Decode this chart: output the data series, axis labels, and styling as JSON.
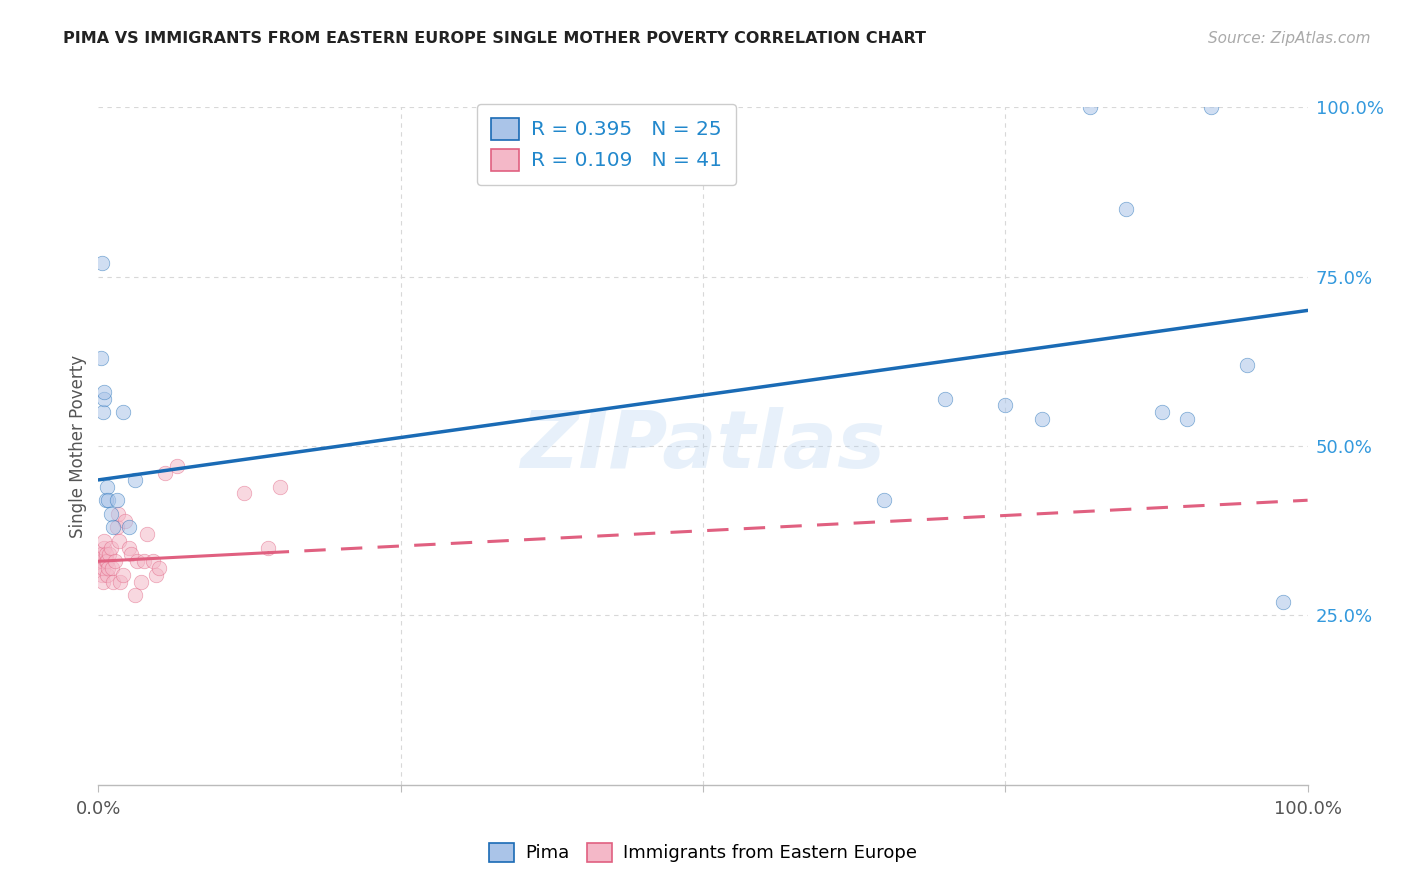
{
  "title": "PIMA VS IMMIGRANTS FROM EASTERN EUROPE SINGLE MOTHER POVERTY CORRELATION CHART",
  "source": "Source: ZipAtlas.com",
  "ylabel": "Single Mother Poverty",
  "watermark": "ZIPatlas",
  "pima_R": 0.395,
  "pima_N": 25,
  "east_europe_R": 0.109,
  "east_europe_N": 41,
  "pima_color": "#aac4e8",
  "pima_line_color": "#1a6bb5",
  "east_europe_color": "#f4b8c8",
  "east_europe_line_color": "#e06080",
  "pima_x": [
    0.002,
    0.003,
    0.004,
    0.005,
    0.005,
    0.006,
    0.007,
    0.008,
    0.01,
    0.012,
    0.015,
    0.02,
    0.025,
    0.03,
    0.65,
    0.7,
    0.75,
    0.78,
    0.82,
    0.85,
    0.88,
    0.9,
    0.92,
    0.95,
    0.98
  ],
  "pima_y": [
    0.63,
    0.77,
    0.55,
    0.57,
    0.58,
    0.42,
    0.44,
    0.42,
    0.4,
    0.38,
    0.42,
    0.55,
    0.38,
    0.45,
    0.42,
    0.57,
    0.56,
    0.54,
    1.0,
    0.85,
    0.55,
    0.54,
    1.0,
    0.62,
    0.27
  ],
  "east_europe_x": [
    0.001,
    0.002,
    0.002,
    0.003,
    0.003,
    0.003,
    0.004,
    0.004,
    0.005,
    0.005,
    0.006,
    0.006,
    0.007,
    0.007,
    0.008,
    0.009,
    0.01,
    0.011,
    0.012,
    0.014,
    0.015,
    0.016,
    0.017,
    0.018,
    0.02,
    0.022,
    0.025,
    0.027,
    0.03,
    0.032,
    0.035,
    0.038,
    0.04,
    0.045,
    0.048,
    0.05,
    0.055,
    0.065,
    0.12,
    0.14,
    0.15
  ],
  "east_europe_y": [
    0.33,
    0.32,
    0.34,
    0.33,
    0.34,
    0.31,
    0.3,
    0.32,
    0.35,
    0.36,
    0.33,
    0.34,
    0.31,
    0.33,
    0.32,
    0.34,
    0.35,
    0.32,
    0.3,
    0.33,
    0.38,
    0.4,
    0.36,
    0.3,
    0.31,
    0.39,
    0.35,
    0.34,
    0.28,
    0.33,
    0.3,
    0.33,
    0.37,
    0.33,
    0.31,
    0.32,
    0.46,
    0.47,
    0.43,
    0.35,
    0.44
  ],
  "pima_line_x0": 0.0,
  "pima_line_y0": 0.45,
  "pima_line_x1": 1.0,
  "pima_line_y1": 0.7,
  "east_line_x0": 0.0,
  "east_line_y0": 0.33,
  "east_line_solid_end": 0.14,
  "east_line_dash_start": 0.14,
  "east_line_x1": 1.0,
  "east_line_y1": 0.42,
  "xlim": [
    0,
    1.0
  ],
  "ylim": [
    0,
    1.0
  ],
  "grid_color": "#d8d8d8",
  "bg_color": "#ffffff",
  "marker_size": 110,
  "marker_alpha": 0.55,
  "marker_edge_width": 0.5
}
